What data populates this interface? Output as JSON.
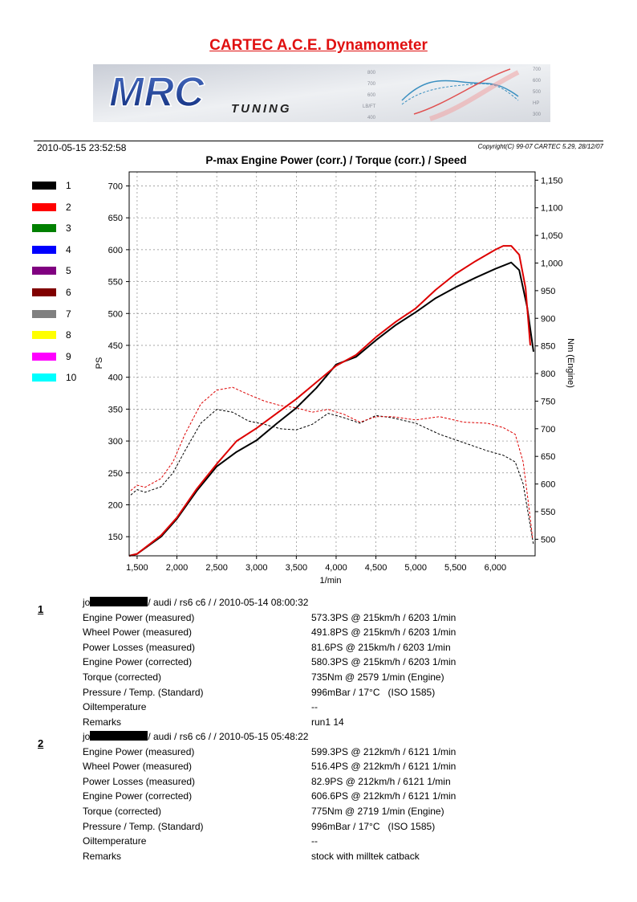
{
  "header": {
    "title": "CARTEC A.C.E. Dynamometer",
    "datetime": "2010-05-15 23:52:58",
    "copyright": "Copyright(C) 99-07 CARTEC 5.29, 28/12/07"
  },
  "banner": {
    "logo_text": "MRC",
    "logo_subtext": "TUNING",
    "left_axis_ticks": [
      "800",
      "700",
      "600",
      "LB/FT",
      "400"
    ],
    "right_axis_ticks": [
      "700",
      "600",
      "500",
      "HP",
      "300"
    ]
  },
  "legend": [
    {
      "label": "1",
      "color": "#000000"
    },
    {
      "label": "2",
      "color": "#ff0000"
    },
    {
      "label": "3",
      "color": "#008000"
    },
    {
      "label": "4",
      "color": "#0000ff"
    },
    {
      "label": "5",
      "color": "#800080"
    },
    {
      "label": "6",
      "color": "#800000"
    },
    {
      "label": "7",
      "color": "#808080"
    },
    {
      "label": "8",
      "color": "#ffff00"
    },
    {
      "label": "9",
      "color": "#ff00ff"
    },
    {
      "label": "10",
      "color": "#00ffff"
    }
  ],
  "chart_data": {
    "type": "line",
    "title": "P-max Engine Power (corr.) / Torque (corr.) / Speed",
    "xlabel": "1/min",
    "ylabel": "PS",
    "y2label": "Nm (Engine)",
    "xlim": [
      1400,
      6500
    ],
    "ylim": [
      120,
      722
    ],
    "y2lim": [
      470,
      1165
    ],
    "grid": true,
    "x_ticks": [
      "1,500",
      "2,000",
      "2,500",
      "3,000",
      "3,500",
      "4,000",
      "4,500",
      "5,000",
      "5,500",
      "6,000"
    ],
    "x_tick_values": [
      1500,
      2000,
      2500,
      3000,
      3500,
      4000,
      4500,
      5000,
      5500,
      6000
    ],
    "y_ticks": [
      "150",
      "200",
      "250",
      "300",
      "350",
      "400",
      "450",
      "500",
      "550",
      "600",
      "650",
      "700"
    ],
    "y_tick_values": [
      150,
      200,
      250,
      300,
      350,
      400,
      450,
      500,
      550,
      600,
      650,
      700
    ],
    "y2_ticks": [
      "500",
      "550",
      "600",
      "650",
      "700",
      "750",
      "800",
      "850",
      "900",
      "950",
      "1,000",
      "1,050",
      "1,100",
      "1,150"
    ],
    "y2_tick_values": [
      500,
      550,
      600,
      650,
      700,
      750,
      800,
      850,
      900,
      950,
      1000,
      1050,
      1100,
      1150
    ],
    "series": [
      {
        "name": "1",
        "kind": "power",
        "axis": "left",
        "color": "#000000",
        "x": [
          1400,
          1500,
          1800,
          2000,
          2250,
          2500,
          2750,
          3000,
          3250,
          3500,
          3750,
          4000,
          4250,
          4500,
          4750,
          5000,
          5250,
          5500,
          5750,
          6000,
          6200,
          6300,
          6400,
          6480
        ],
        "y": [
          120,
          123,
          150,
          178,
          222,
          260,
          283,
          301,
          327,
          352,
          383,
          420,
          432,
          458,
          482,
          502,
          524,
          541,
          556,
          570,
          580,
          568,
          510,
          440
        ]
      },
      {
        "name": "2",
        "kind": "power",
        "axis": "left",
        "color": "#dd0000",
        "x": [
          1400,
          1500,
          1800,
          2000,
          2250,
          2500,
          2750,
          3000,
          3250,
          3500,
          3750,
          4000,
          4250,
          4500,
          4750,
          5000,
          5250,
          5500,
          5750,
          6000,
          6100,
          6200,
          6300,
          6380,
          6440
        ],
        "y": [
          120,
          123,
          152,
          180,
          225,
          264,
          300,
          320,
          343,
          366,
          392,
          418,
          435,
          463,
          487,
          508,
          537,
          562,
          582,
          600,
          606,
          606,
          592,
          540,
          450
        ]
      },
      {
        "name": "1",
        "kind": "torque",
        "axis": "right",
        "color": "#000000",
        "x": [
          1420,
          1500,
          1600,
          1800,
          1950,
          2100,
          2300,
          2500,
          2700,
          2900,
          3100,
          3300,
          3500,
          3700,
          3900,
          4100,
          4300,
          4500,
          4700,
          5000,
          5300,
          5600,
          5900,
          6100,
          6250,
          6350,
          6420,
          6480
        ],
        "y": [
          580,
          590,
          585,
          595,
          620,
          660,
          710,
          735,
          730,
          714,
          708,
          700,
          698,
          708,
          728,
          720,
          710,
          724,
          720,
          710,
          690,
          675,
          660,
          652,
          640,
          600,
          540,
          490
        ]
      },
      {
        "name": "2",
        "kind": "torque",
        "axis": "right",
        "color": "#dd0000",
        "x": [
          1420,
          1500,
          1600,
          1800,
          1950,
          2100,
          2300,
          2500,
          2700,
          2900,
          3100,
          3300,
          3500,
          3700,
          3900,
          4100,
          4300,
          4500,
          4700,
          5000,
          5300,
          5600,
          5900,
          6100,
          6250,
          6350,
          6420,
          6470
        ],
        "y": [
          588,
          598,
          594,
          610,
          640,
          690,
          745,
          770,
          775,
          762,
          750,
          742,
          738,
          730,
          735,
          726,
          712,
          722,
          722,
          716,
          722,
          712,
          710,
          702,
          690,
          640,
          560,
          500
        ]
      }
    ]
  },
  "runs": [
    {
      "number": "1",
      "head_prefix": "jo",
      "head_suffix": "/ audi / rs6  c6 /  / 2010-05-14 08:00:32",
      "rows": [
        {
          "label": "Engine Power (measured)",
          "value": "573.3PS @ 215km/h / 6203 1/min"
        },
        {
          "label": "Wheel Power (measured)",
          "value": "491.8PS @ 215km/h / 6203 1/min"
        },
        {
          "label": "Power Losses (measured)",
          "value": "81.6PS @ 215km/h / 6203 1/min"
        },
        {
          "label": "Engine Power (corrected)",
          "value": "580.3PS @ 215km/h / 6203 1/min"
        },
        {
          "label": "Torque (corrected)",
          "value": "735Nm @ 2579 1/min (Engine)"
        },
        {
          "label": "Pressure / Temp. (Standard)",
          "value": "996mBar / 17°C   (ISO 1585)"
        },
        {
          "label": "Oiltemperature",
          "value": "--"
        },
        {
          "label": "Remarks",
          "value": "run1 14"
        }
      ]
    },
    {
      "number": "2",
      "head_prefix": "jo",
      "head_suffix": "/ audi / rs6  c6 /  / 2010-05-15 05:48:22",
      "rows": [
        {
          "label": "Engine Power (measured)",
          "value": "599.3PS @ 212km/h / 6121 1/min"
        },
        {
          "label": "Wheel Power (measured)",
          "value": "516.4PS @ 212km/h / 6121 1/min"
        },
        {
          "label": "Power Losses (measured)",
          "value": "82.9PS @ 212km/h / 6121 1/min"
        },
        {
          "label": "Engine Power (corrected)",
          "value": "606.6PS @ 212km/h / 6121 1/min"
        },
        {
          "label": "Torque (corrected)",
          "value": "775Nm @ 2719 1/min (Engine)"
        },
        {
          "label": "Pressure / Temp. (Standard)",
          "value": "996mBar / 17°C   (ISO 1585)"
        },
        {
          "label": "Oiltemperature",
          "value": "--"
        },
        {
          "label": "Remarks",
          "value": "stock with milltek catback"
        }
      ]
    }
  ]
}
